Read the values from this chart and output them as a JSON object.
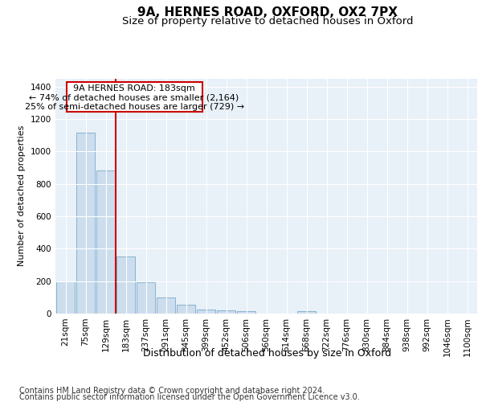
{
  "title1": "9A, HERNES ROAD, OXFORD, OX2 7PX",
  "title2": "Size of property relative to detached houses in Oxford",
  "xlabel": "Distribution of detached houses by size in Oxford",
  "ylabel": "Number of detached properties",
  "footer1": "Contains HM Land Registry data © Crown copyright and database right 2024.",
  "footer2": "Contains public sector information licensed under the Open Government Licence v3.0.",
  "annotation_line1": "9A HERNES ROAD: 183sqm",
  "annotation_line2": "← 74% of detached houses are smaller (2,164)",
  "annotation_line3": "25% of semi-detached houses are larger (729) →",
  "bar_color": "#ccdded",
  "bar_edge_color": "#7aaac8",
  "redline_color": "#cc0000",
  "categories": [
    "21sqm",
    "75sqm",
    "129sqm",
    "183sqm",
    "237sqm",
    "291sqm",
    "345sqm",
    "399sqm",
    "452sqm",
    "506sqm",
    "560sqm",
    "614sqm",
    "668sqm",
    "722sqm",
    "776sqm",
    "830sqm",
    "884sqm",
    "938sqm",
    "992sqm",
    "1046sqm",
    "1100sqm"
  ],
  "values": [
    200,
    1115,
    880,
    350,
    192,
    100,
    55,
    25,
    20,
    15,
    0,
    0,
    17,
    0,
    0,
    0,
    0,
    0,
    0,
    0,
    0
  ],
  "ylim": [
    0,
    1450
  ],
  "yticks": [
    0,
    200,
    400,
    600,
    800,
    1000,
    1200,
    1400
  ],
  "background_color": "#ffffff",
  "plot_bg_color": "#e8f0f8",
  "grid_color": "#ffffff",
  "title1_fontsize": 11,
  "title2_fontsize": 9.5,
  "ylabel_fontsize": 8,
  "xlabel_fontsize": 9,
  "tick_fontsize": 7.5,
  "annotation_fontsize": 8,
  "footer_fontsize": 7
}
